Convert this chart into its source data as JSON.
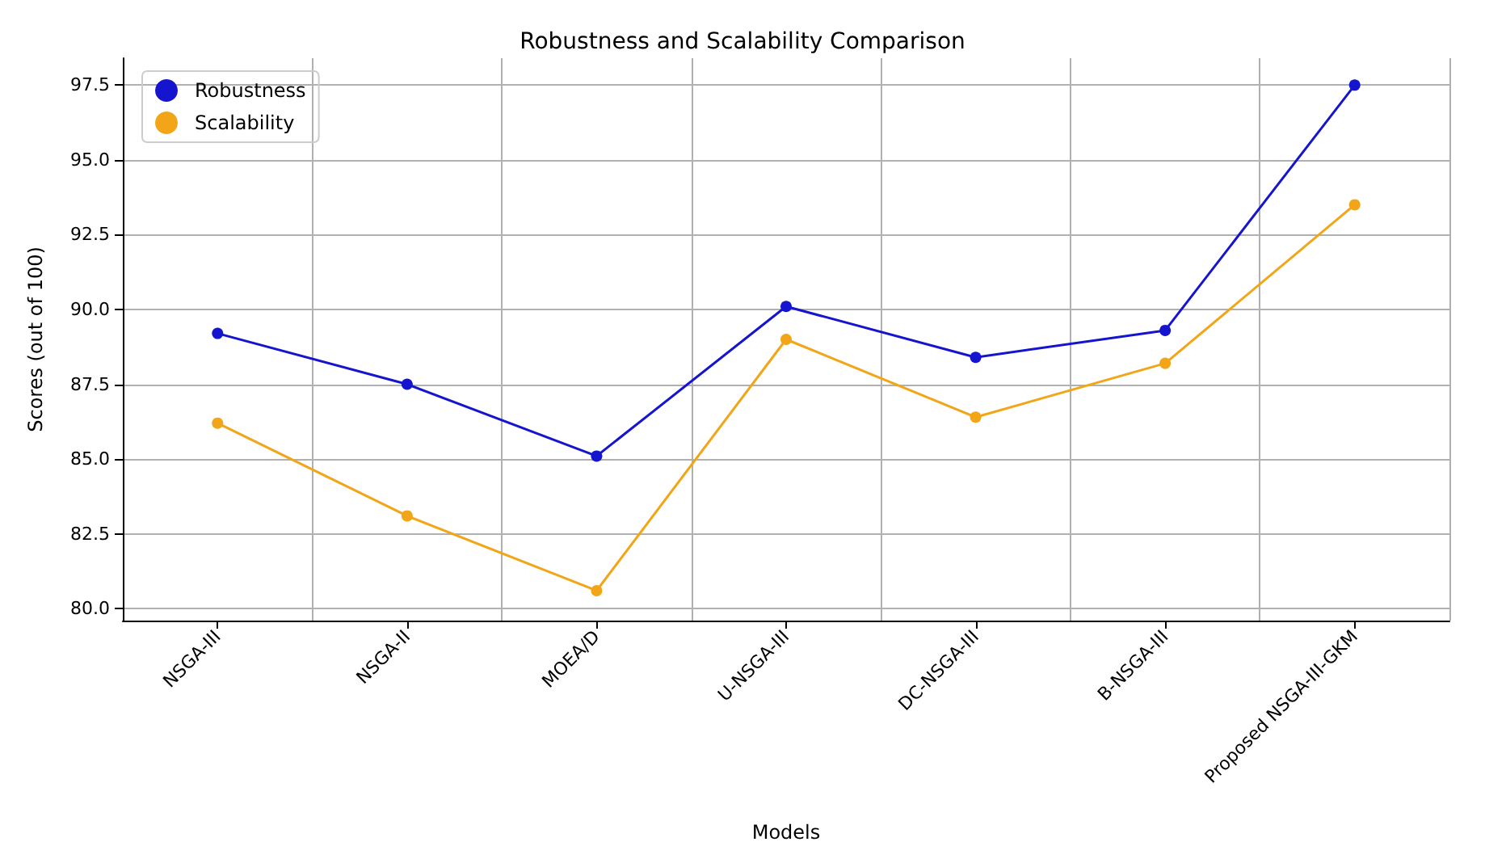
{
  "chart_data": {
    "type": "line",
    "title": "Robustness and Scalability Comparison",
    "xlabel": "Models",
    "ylabel": "Scores (out of 100)",
    "categories": [
      "NSGA-III",
      "NSGA-II",
      "MOEA/D",
      "U-NSGA-III",
      "DC-NSGA-III",
      "B-NSGA-III",
      "Proposed NSGA-III-GKM"
    ],
    "series": [
      {
        "name": "Robustness",
        "color": "#1515d0",
        "values": [
          89.2,
          87.5,
          85.1,
          90.1,
          88.4,
          89.3,
          97.5
        ]
      },
      {
        "name": "Scalability",
        "color": "#f2a516",
        "values": [
          86.2,
          83.1,
          80.6,
          89.0,
          86.4,
          88.2,
          93.5
        ]
      }
    ],
    "ylim": [
      79.6,
      98.4
    ],
    "yticks": [
      {
        "value": 80,
        "label": "80.0"
      },
      82.5,
      {
        "value": 85,
        "label": "85.0"
      },
      87.5,
      {
        "value": 90,
        "label": "90.0"
      },
      92.5,
      {
        "value": 95,
        "label": "95.0"
      },
      97.5
    ],
    "grid": true,
    "legend": "top left",
    "marker": "circle",
    "line_style": "solid"
  }
}
